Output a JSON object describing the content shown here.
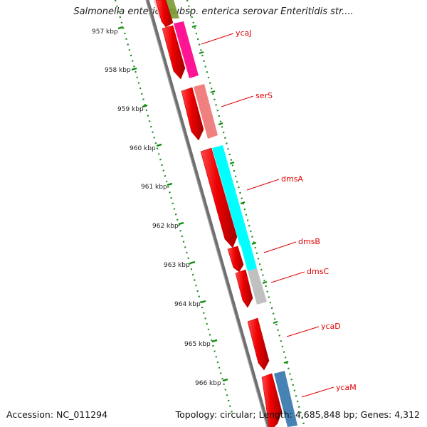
{
  "title": "Salmonella enterica subsp. enterica serovar Enteritidis str....",
  "footer": {
    "accession": "Accession: NC_011294",
    "summary": "Topology: circular; Length: 4,685,848 bp; Genes: 4,312"
  },
  "ticks": [
    {
      "label": "957 kbp"
    },
    {
      "label": "958 kbp"
    },
    {
      "label": "959 kbp"
    },
    {
      "label": "960 kbp"
    },
    {
      "label": "961 kbp"
    },
    {
      "label": "962 kbp"
    },
    {
      "label": "963 kbp"
    },
    {
      "label": "964 kbp"
    },
    {
      "label": "965 kbp"
    },
    {
      "label": "966 kbp"
    }
  ],
  "genes": [
    {
      "name": "ycaJ",
      "color": "#ff1493"
    },
    {
      "name": "serS",
      "color": "#f08080"
    },
    {
      "name": "dmsA",
      "color": "#00ffff"
    },
    {
      "name": "dmsB",
      "color": "#00ffff"
    },
    {
      "name": "dmsC",
      "color": "#c0c0c0"
    },
    {
      "name": "ycaD",
      "color": ""
    },
    {
      "name": "ycaM",
      "color": "#4682b4"
    }
  ],
  "colors": {
    "cds": "#ee0000",
    "backbone": "#808080",
    "tick": "#008000",
    "label_line": "#e00000"
  }
}
